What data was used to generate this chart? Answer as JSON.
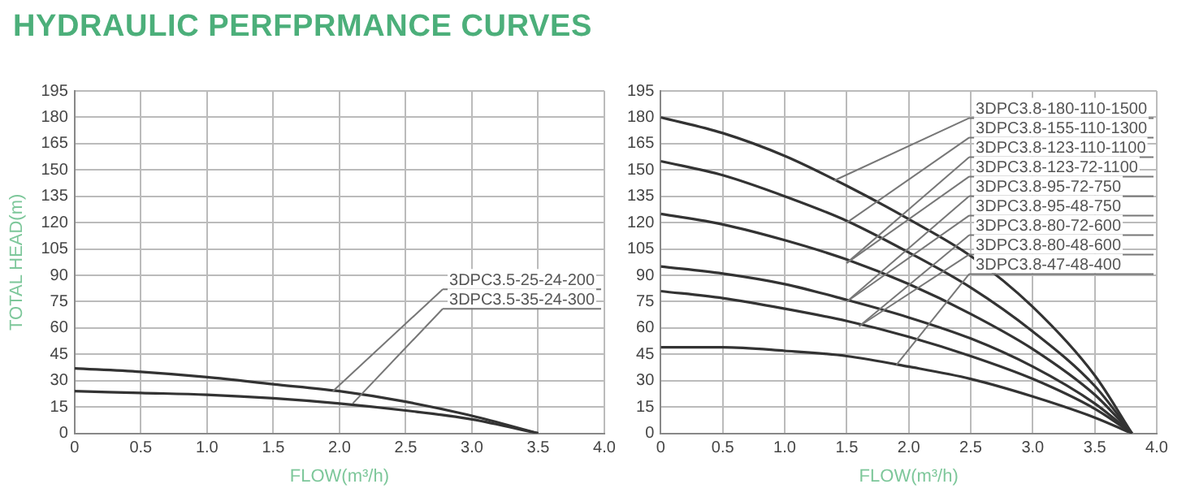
{
  "chart_data": [
    {
      "type": "line",
      "title": "HYDRAULIC PERFPRMANCE CURVES",
      "xlabel": "FLOW(m³/h)",
      "ylabel": "TOTAL HEAD(m)",
      "x": [
        0,
        0.5,
        1.0,
        1.5,
        2.0,
        2.5,
        3.0,
        3.5
      ],
      "series": [
        {
          "color": "#333333",
          "values": [
            37,
            35,
            32,
            28,
            24,
            18,
            10,
            0
          ]
        },
        {
          "color": "#333333",
          "values": [
            24,
            23,
            22,
            20,
            17,
            13,
            8,
            0
          ]
        }
      ],
      "annotations": [
        {
          "text": "3DPC3.5-25-24-200",
          "x": 1.95,
          "y": 24
        },
        {
          "text": "3DPC3.5-35-24-300",
          "x": 2.1,
          "y": 17
        }
      ],
      "xlim": [
        0,
        4
      ],
      "xticks": [
        0,
        0.5,
        {
          "value": 1,
          "label": "1.0"
        },
        1.5,
        {
          "value": 2,
          "label": "2.0"
        },
        2.5,
        {
          "value": 3,
          "label": "3.0"
        },
        3.5,
        {
          "value": 4,
          "label": "4.0"
        }
      ],
      "ylim": [
        0,
        195
      ],
      "yticks": [
        0,
        15,
        30,
        45,
        60,
        75,
        90,
        105,
        120,
        135,
        150,
        165,
        180,
        195
      ],
      "grid": true
    },
    {
      "type": "line",
      "xlabel": "FLOW(m³/h)",
      "x": [
        0,
        0.5,
        1.0,
        1.5,
        2.0,
        2.5,
        3.0,
        3.5,
        3.8
      ],
      "series": [
        {
          "color": "#333333",
          "values": [
            180,
            171,
            158,
            141,
            122,
            101,
            72,
            33,
            0
          ]
        },
        {
          "color": "#333333",
          "values": [
            155,
            147,
            135,
            121,
            103,
            83,
            58,
            27,
            0
          ]
        },
        {
          "color": "#333333",
          "values": [
            125,
            119,
            110,
            99,
            85,
            68,
            48,
            22,
            0
          ]
        },
        {
          "color": "#333333",
          "values": [
            95,
            91,
            85,
            76,
            66,
            54,
            38,
            17,
            0
          ]
        },
        {
          "color": "#333333",
          "values": [
            81,
            77,
            71,
            64,
            55,
            44,
            31,
            14,
            0
          ]
        },
        {
          "color": "#333333",
          "values": [
            49,
            49,
            47,
            44,
            38,
            31,
            21,
            9,
            0
          ]
        }
      ],
      "annotations": [
        {
          "text": "3DPC3.8-180-110-1500",
          "x": 1.4,
          "y": 144
        },
        {
          "text": "3DPC3.8-155-110-1300",
          "x": 1.5,
          "y": 120
        },
        {
          "text": "3DPC3.8-123-110-1100",
          "x": 1.5,
          "y": 97
        },
        {
          "text": "3DPC3.8-123-72-1100",
          "x": 1.5,
          "y": 97
        },
        {
          "text": "3DPC3.8-95-72-750",
          "x": 1.5,
          "y": 75
        },
        {
          "text": "3DPC3.8-95-48-750",
          "x": 1.5,
          "y": 75
        },
        {
          "text": "3DPC3.8-80-72-600",
          "x": 1.6,
          "y": 61
        },
        {
          "text": "3DPC3.8-80-48-600",
          "x": 1.6,
          "y": 61
        },
        {
          "text": "3DPC3.8-47-48-400",
          "x": 1.9,
          "y": 39
        }
      ],
      "xlim": [
        0,
        4
      ],
      "xticks": [
        0,
        0.5,
        {
          "value": 1,
          "label": "1.0"
        },
        1.5,
        {
          "value": 2,
          "label": "2.0"
        },
        2.5,
        {
          "value": 3,
          "label": "3.0"
        },
        3.5,
        {
          "value": 4,
          "label": "4.0"
        }
      ],
      "ylim": [
        0,
        195
      ],
      "yticks": [
        0,
        15,
        30,
        45,
        60,
        75,
        90,
        105,
        120,
        135,
        150,
        165,
        180,
        195
      ],
      "grid": true
    }
  ]
}
